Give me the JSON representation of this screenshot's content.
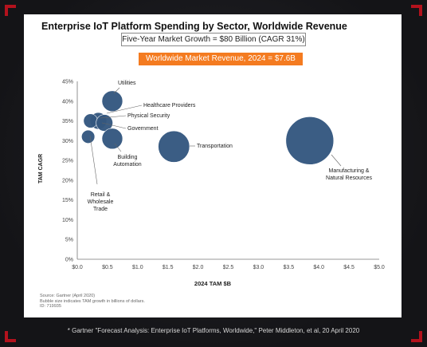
{
  "card": {
    "title": "Enterprise IoT Platform Spending by Sector, Worldwide Revenue",
    "growth_box": "Five-Year Market Growth = $80 Billion (CAGR 31%)",
    "revenue_box": "Worldwide Market Revenue, 2024 = $7.6B",
    "source_lines": [
      "Source: Gartner (April 2020)",
      "Bubble size indicates TAM growth in billions of dollars.",
      "ID: 719935"
    ]
  },
  "footnote": "* Gartner \"Forecast Analysis: Enterprise IoT Platforms, Worldwide,\" Peter Middleton, et al, 20 April 2020",
  "colors": {
    "bubble": "#34577f",
    "accent": "#f47b20",
    "frame_corner": "#b3121d"
  },
  "chart_data": {
    "type": "scatter",
    "title": "Enterprise IoT Platform Spending by Sector, Worldwide Revenue",
    "xlabel": "2024 TAM $B",
    "ylabel": "TAM CAGR",
    "xlim": [
      0,
      5
    ],
    "ylim": [
      0,
      45
    ],
    "x_ticks": [
      "$0.0",
      "$0.5",
      "$1.0",
      "$1.5",
      "$2.0",
      "$2.5",
      "$3.0",
      "$3.5",
      "$4.0",
      "$4.5",
      "$5.0"
    ],
    "y_ticks": [
      "0%",
      "5%",
      "10%",
      "15%",
      "20%",
      "25%",
      "30%",
      "35%",
      "40%",
      "45%"
    ],
    "grid": false,
    "legend": "none",
    "bubble_size_meaning": "Bubble size indicates TAM growth in billions of dollars.",
    "points": [
      {
        "label": "Utilities",
        "x": 0.58,
        "y": 40,
        "size": 1.8
      },
      {
        "label": "Healthcare Providers",
        "x": 0.35,
        "y": 35,
        "size": 1.0
      },
      {
        "label": "Physical Security",
        "x": 0.22,
        "y": 35,
        "size": 0.6
      },
      {
        "label": "Government",
        "x": 0.45,
        "y": 34.5,
        "size": 1.0
      },
      {
        "label": "Retail & Wholesale Trade",
        "x": 0.18,
        "y": 31,
        "size": 0.5
      },
      {
        "label": "Building Automation",
        "x": 0.58,
        "y": 30.5,
        "size": 1.8
      },
      {
        "label": "Transportation",
        "x": 1.6,
        "y": 28.5,
        "size": 5.0
      },
      {
        "label": "Manufacturing & Natural Resources",
        "x": 3.85,
        "y": 30,
        "size": 13.0
      }
    ],
    "annotation_lines": {
      "Utilities": [
        "Utilities"
      ],
      "Healthcare Providers": [
        "Healthcare Providers"
      ],
      "Physical Security": [
        "Physical Security"
      ],
      "Government": [
        "Government"
      ],
      "Retail & Wholesale Trade": [
        "Retail &",
        "Wholesale",
        "Trade"
      ],
      "Building Automation": [
        "Building",
        "Automation"
      ],
      "Transportation": [
        "Transportation"
      ],
      "Manufacturing & Natural Resources": [
        "Manufacturing &",
        "Natural Resources"
      ]
    }
  }
}
